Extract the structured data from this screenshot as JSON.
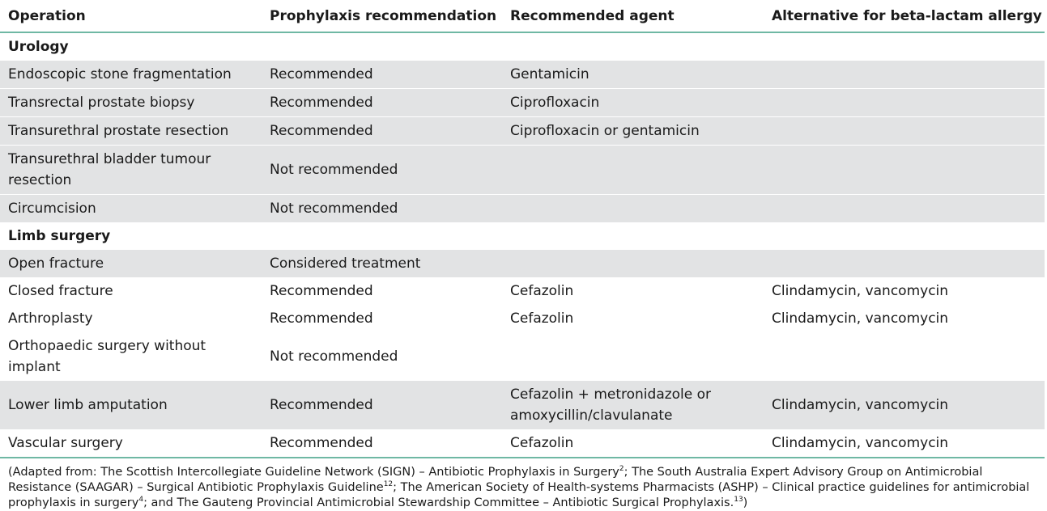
{
  "table": {
    "headers": [
      "Operation",
      "Prophylaxis recommendation",
      "Recommended agent",
      "Alternative for beta-lactam allergy"
    ],
    "sections": [
      {
        "title": "Urology",
        "rows": [
          [
            "Endoscopic stone fragmentation",
            "Recommended",
            "Gentamicin",
            ""
          ],
          [
            "Transrectal prostate biopsy",
            "Recommended",
            "Ciprofloxacin",
            ""
          ],
          [
            "Transurethral prostate resection",
            "Recommended",
            "Ciprofloxacin or gentamicin",
            ""
          ],
          [
            "Transurethral bladder tumour resection",
            "Not recommended",
            "",
            ""
          ],
          [
            "Circumcision",
            "Not recommended",
            "",
            ""
          ]
        ]
      },
      {
        "title": "Limb surgery",
        "rows": [
          [
            "Open fracture",
            "Considered treatment",
            "",
            ""
          ],
          [
            "Closed fracture",
            "Recommended",
            "Cefazolin",
            "Clindamycin, vancomycin"
          ],
          [
            "Arthroplasty",
            "Recommended",
            "Cefazolin",
            "Clindamycin, vancomycin"
          ],
          [
            "Orthopaedic surgery without implant",
            "Not recommended",
            "",
            ""
          ],
          [
            "Lower limb amputation",
            "Recommended",
            "Cefazolin + metronidazole or amoxycillin/clavulanate",
            "Clindamycin, vancomycin"
          ],
          [
            "Vascular surgery",
            "Recommended",
            "Cefazolin",
            "Clindamycin, vancomycin"
          ]
        ]
      }
    ]
  },
  "footnote": {
    "part1": "(Adapted from: The Scottish Intercollegiate Guideline Network (SIGN) – Antibiotic Prophylaxis in Surgery",
    "ref1": "2",
    "part2": "; The South Australia Expert Advisory Group on Antimicrobial Resistance (SAAGAR) – Surgical Antibiotic Prophylaxis Guideline",
    "ref2": "12",
    "part3": "; The American Society of Health-systems Pharmacists (ASHP) – Clinical practice guidelines for antimicrobial prophylaxis in surgery",
    "ref3": "4",
    "part4": "; and The Gauteng Provincial Antimicrobial Stewardship Committee – Antibiotic Surgical Prophylaxis.",
    "ref4": "13",
    "part5": ")"
  }
}
